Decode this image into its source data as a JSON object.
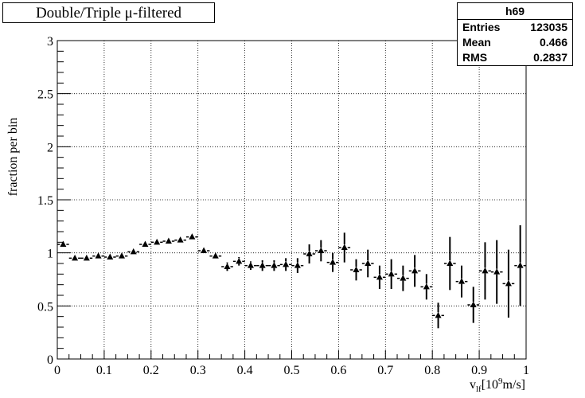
{
  "title": "Double/Triple μ-filtered",
  "stats": {
    "name": "h69",
    "entries_label": "Entries",
    "entries": "123035",
    "mean_label": "Mean",
    "mean": "0.466",
    "rms_label": "RMS",
    "rms": "0.2837"
  },
  "chart_data": {
    "type": "scatter",
    "xlabel": "v_lf[10^9m/s]",
    "ylabel": "fraction per bin",
    "xlim": [
      0,
      1
    ],
    "ylim": [
      0,
      3
    ],
    "grid": true,
    "marker": "triangle",
    "color": "#000000",
    "x_ticks": [
      "0",
      "0.1",
      "0.2",
      "0.3",
      "0.4",
      "0.5",
      "0.6",
      "0.7",
      "0.8",
      "0.9",
      "1"
    ],
    "y_ticks": [
      "0",
      "0.5",
      "1",
      "1.5",
      "2",
      "2.5",
      "3"
    ],
    "bin_width": 0.025,
    "x": [
      0.0125,
      0.0375,
      0.0625,
      0.0875,
      0.1125,
      0.1375,
      0.1625,
      0.1875,
      0.2125,
      0.2375,
      0.2625,
      0.2875,
      0.3125,
      0.3375,
      0.3625,
      0.3875,
      0.4125,
      0.4375,
      0.4625,
      0.4875,
      0.5125,
      0.5375,
      0.5625,
      0.5875,
      0.6125,
      0.6375,
      0.6625,
      0.6875,
      0.7125,
      0.7375,
      0.7625,
      0.7875,
      0.8125,
      0.8375,
      0.8625,
      0.8875,
      0.9125,
      0.9375,
      0.9625,
      0.9875
    ],
    "y": [
      1.08,
      0.95,
      0.95,
      0.97,
      0.96,
      0.97,
      1.01,
      1.08,
      1.1,
      1.11,
      1.12,
      1.15,
      1.02,
      0.97,
      0.87,
      0.92,
      0.88,
      0.88,
      0.88,
      0.89,
      0.88,
      0.99,
      1.02,
      0.91,
      1.05,
      0.84,
      0.9,
      0.77,
      0.8,
      0.76,
      0.83,
      0.68,
      0.41,
      0.9,
      0.73,
      0.51,
      0.83,
      0.82,
      0.71,
      0.88
    ],
    "yerr": [
      0.02,
      0.02,
      0.02,
      0.02,
      0.02,
      0.02,
      0.02,
      0.02,
      0.02,
      0.02,
      0.02,
      0.02,
      0.03,
      0.03,
      0.04,
      0.04,
      0.04,
      0.05,
      0.05,
      0.06,
      0.07,
      0.09,
      0.1,
      0.09,
      0.14,
      0.1,
      0.13,
      0.11,
      0.14,
      0.12,
      0.15,
      0.12,
      0.12,
      0.25,
      0.15,
      0.17,
      0.27,
      0.3,
      0.32,
      0.38
    ]
  }
}
